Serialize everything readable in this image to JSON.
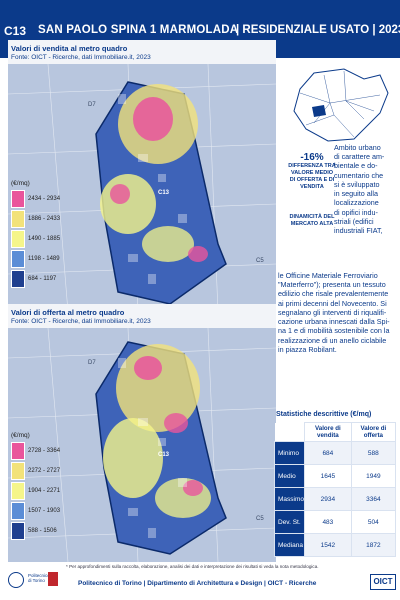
{
  "header": {
    "code": "C13",
    "name": "SAN PAOLO SPINA 1 MARMOLADA",
    "tag": "| RESIDENZIALE USATO | 2023"
  },
  "panel_sale": {
    "title": "Valori di vendita al metro quadro",
    "source": "Fonte: OICT - Ricerche, dati Immobiliare.it, 2023",
    "legend_unit": "(€/mq)",
    "legend": [
      {
        "label": "2434 - 2934",
        "color": "#e9559c"
      },
      {
        "label": "1886 - 2433",
        "color": "#f2e27a"
      },
      {
        "label": "1490 - 1885",
        "color": "#f5f58a"
      },
      {
        "label": "1198 - 1489",
        "color": "#5b8dd6"
      },
      {
        "label": "684 - 1197",
        "color": "#1f3f8f"
      }
    ],
    "map_labels": {
      "d7": "D7",
      "c13": "C13",
      "c5": "C5"
    }
  },
  "panel_offer": {
    "title": "Valori di offerta al metro quadro",
    "source": "Fonte: OICT - Ricerche, dati Immobiliare.it, 2023",
    "legend_unit": "(€/mq)",
    "legend": [
      {
        "label": "2728 - 3364",
        "color": "#e9559c"
      },
      {
        "label": "2272 - 2727",
        "color": "#f2e27a"
      },
      {
        "label": "1904 - 2271",
        "color": "#f5f58a"
      },
      {
        "label": "1507 - 1903",
        "color": "#5b8dd6"
      },
      {
        "label": "588 - 1506",
        "color": "#1f3f8f"
      }
    ],
    "map_labels": {
      "d7": "D7",
      "c13": "C13",
      "c5": "C5"
    }
  },
  "kpi_diff": {
    "value": "-16%",
    "label": [
      "DIFFERENZA TRA",
      "VALORE MEDIO",
      "DI OFFERTA E DI",
      "VENDITA"
    ]
  },
  "kpi_dyn": {
    "label": [
      "DINAMICITÀ DEL",
      "MERCATO ALTA"
    ]
  },
  "description": {
    "right_col": [
      "Ambito urbano",
      "di carattere am-",
      "bientale e do-",
      "cumentario che",
      "si è sviluppato",
      "in seguito alla",
      "localizzazione",
      "di opifici indu-",
      "striali (edifici",
      "industriali FIAT,"
    ],
    "full": [
      "le Officine Materiale Ferroviario",
      "\"Materferro\"); presenta un tessuto",
      "edilizio che risale prevalentemente",
      "ai primi decenni del Novecento. Si",
      "segnalano gli interventi di riqualifi-",
      "cazione urbana innescati dalla Spi-",
      "na 1 e di mobilità sostenibile con la",
      "realizzazione di un anello ciclabile",
      "in piazza Robilant."
    ]
  },
  "stats": {
    "title": "Statistiche descrittive (€/mq)",
    "col_sale": "Valore di vendita",
    "col_offer": "Valore di offerta",
    "rows": [
      {
        "label": "Minimo",
        "sale": "684",
        "offer": "588"
      },
      {
        "label": "Medio",
        "sale": "1645",
        "offer": "1949"
      },
      {
        "label": "Massimo",
        "sale": "2934",
        "offer": "3364"
      },
      {
        "label": "Dev. St.",
        "sale": "483",
        "offer": "504"
      },
      {
        "label": "Mediana",
        "sale": "1542",
        "offer": "1872"
      }
    ]
  },
  "footnote": "* Per approfondimenti sulla raccolta, elaborazione, analisi dei dati e interpretazione dei risultati si veda la nota metodologica.",
  "footer": "Politecnico di Torino | Dipartimento di Architettura e Design | OICT - Ricerche",
  "logos": {
    "poli_text": [
      "Politecnico",
      "di Torino"
    ],
    "oict": "OICT"
  },
  "colors": {
    "brand": "#0b3a8a",
    "high": "#e9559c",
    "mid": "#f5f58a",
    "low": "#1f3f8f"
  }
}
